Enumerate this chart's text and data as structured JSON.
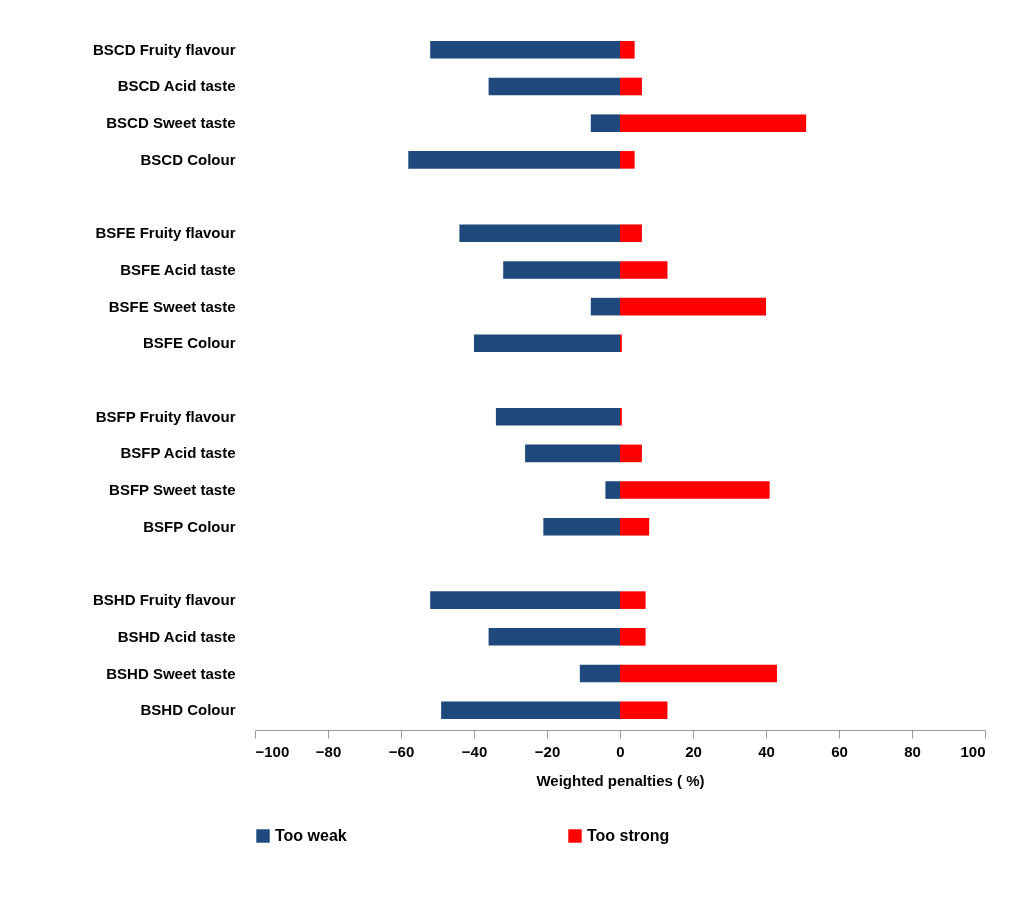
{
  "chart_data": {
    "type": "bar",
    "orientation": "horizontal",
    "stacked": true,
    "xlabel": "Weighted penalties ( %)",
    "categories": [
      "BSCD Fruity flavour",
      "BSCD Acid taste",
      "BSCD Sweet taste",
      "BSCD Colour",
      null,
      "BSFE Fruity flavour",
      "BSFE Acid taste",
      "BSFE Sweet taste",
      "BSFE Colour",
      null,
      "BSFP Fruity flavour",
      "BSFP Acid taste",
      "BSFP Sweet taste",
      "BSFP Colour",
      null,
      "BSHD Fruity flavour",
      "BSHD Acid taste",
      "BSHD Sweet taste",
      "BSHD Colour"
    ],
    "series": [
      {
        "name": "Too weak",
        "color": "#1f497d",
        "values": [
          -52,
          -36,
          -8,
          -58,
          null,
          -44,
          -32,
          -8,
          -40,
          null,
          -34,
          -26,
          -4,
          -21,
          null,
          -52,
          -36,
          -11,
          -49
        ]
      },
      {
        "name": "Too strong",
        "color": "#ff0000",
        "values": [
          4,
          6,
          51,
          4,
          null,
          6,
          13,
          40,
          0.5,
          null,
          0.5,
          6,
          41,
          8,
          null,
          7,
          7,
          43,
          13
        ]
      }
    ],
    "xlim": [
      -100,
      100
    ],
    "xticks": [
      -100,
      -80,
      -60,
      -40,
      -20,
      0,
      20,
      40,
      60,
      80,
      100
    ],
    "grid": false,
    "legend": "bottom"
  }
}
